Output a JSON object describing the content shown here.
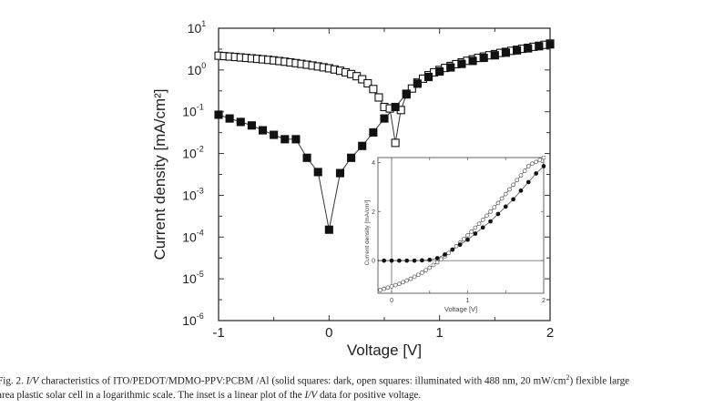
{
  "chart_data": [
    {
      "id": "main",
      "type": "scatter",
      "title": "",
      "xlabel": "Voltage [V]",
      "ylabel": "Current density [mA/cm²]",
      "yscale": "log",
      "xlim": [
        -1,
        2
      ],
      "ylim": [
        1e-06,
        10
      ],
      "xticks": [
        -1,
        0,
        1,
        2
      ],
      "xtick_labels": [
        "-1",
        "0",
        "1",
        "2"
      ],
      "ytick_exponents": [
        1,
        0,
        -1,
        -2,
        -3,
        -4,
        -5,
        -6
      ],
      "grid": false,
      "series": [
        {
          "name": "dark (solid squares)",
          "marker": "filled-square",
          "line": true,
          "x": [
            -1.0,
            -0.9,
            -0.8,
            -0.7,
            -0.6,
            -0.5,
            -0.4,
            -0.3,
            -0.2,
            -0.1,
            0.0,
            0.1,
            0.2,
            0.3,
            0.4,
            0.5,
            0.6,
            0.7,
            0.8,
            0.9,
            1.0,
            1.1,
            1.2,
            1.3,
            1.4,
            1.5,
            1.6,
            1.7,
            1.8,
            1.9,
            2.0
          ],
          "y": [
            0.085,
            0.069,
            0.057,
            0.047,
            0.036,
            0.028,
            0.022,
            0.022,
            0.0079,
            0.0036,
            0.00015,
            0.0034,
            0.0079,
            0.0152,
            0.032,
            0.069,
            0.13,
            0.27,
            0.47,
            0.68,
            0.92,
            1.15,
            1.4,
            1.65,
            1.95,
            2.25,
            2.6,
            2.95,
            3.3,
            3.7,
            4.1
          ]
        },
        {
          "name": "illuminated (open squares)",
          "marker": "open-square",
          "line": true,
          "x": [
            -1.0,
            -0.95,
            -0.9,
            -0.85,
            -0.8,
            -0.75,
            -0.7,
            -0.65,
            -0.6,
            -0.55,
            -0.5,
            -0.45,
            -0.4,
            -0.35,
            -0.3,
            -0.25,
            -0.2,
            -0.15,
            -0.1,
            -0.05,
            0.0,
            0.05,
            0.1,
            0.15,
            0.2,
            0.25,
            0.3,
            0.35,
            0.4,
            0.45,
            0.5,
            0.55,
            0.6,
            0.65,
            0.7,
            0.75,
            0.8,
            0.85,
            0.9,
            0.95,
            1.0,
            1.05,
            1.1,
            1.15,
            1.2,
            1.25,
            1.3,
            1.35,
            1.4,
            1.45,
            1.5,
            1.55,
            1.6,
            1.65,
            1.7,
            1.75,
            1.8,
            1.85,
            1.9,
            1.95,
            2.0
          ],
          "y": [
            2.2,
            2.15,
            2.1,
            2.05,
            2.0,
            1.95,
            1.9,
            1.85,
            1.8,
            1.75,
            1.7,
            1.64,
            1.58,
            1.52,
            1.46,
            1.4,
            1.34,
            1.28,
            1.22,
            1.16,
            1.1,
            1.03,
            0.96,
            0.88,
            0.8,
            0.71,
            0.6,
            0.48,
            0.35,
            0.22,
            0.13,
            0.12,
            0.018,
            0.11,
            0.26,
            0.36,
            0.5,
            0.62,
            0.75,
            0.88,
            1.0,
            1.12,
            1.25,
            1.38,
            1.52,
            1.66,
            1.8,
            1.95,
            2.1,
            2.25,
            2.4,
            2.56,
            2.72,
            2.88,
            3.05,
            3.22,
            3.4,
            3.6,
            3.8,
            4.0,
            4.3
          ]
        }
      ]
    },
    {
      "id": "inset",
      "type": "scatter",
      "title": "",
      "xlabel": "Voltage [V]",
      "ylabel": "Current density [mA/cm²]",
      "yscale": "linear",
      "xlim": [
        -0.18,
        2
      ],
      "ylim": [
        -1.33,
        4.2
      ],
      "xticks": [
        0,
        1,
        2
      ],
      "xtick_labels": [
        "0",
        "1",
        "2"
      ],
      "yticks": [
        0,
        2,
        4
      ],
      "ytick_labels": [
        "0",
        "2",
        "4"
      ],
      "grid": false,
      "series": [
        {
          "name": "dark (solid)",
          "marker": "filled-circle",
          "line": true,
          "x": [
            -0.2,
            -0.1,
            0.0,
            0.1,
            0.2,
            0.3,
            0.4,
            0.5,
            0.6,
            0.7,
            0.8,
            0.9,
            1.0,
            1.1,
            1.2,
            1.3,
            1.4,
            1.5,
            1.6,
            1.7,
            1.8,
            1.9,
            2.0
          ],
          "y": [
            0.0,
            0.0,
            0.0,
            0.0,
            0.0,
            0.0,
            0.01,
            0.03,
            0.1,
            0.25,
            0.45,
            0.65,
            0.85,
            1.1,
            1.35,
            1.6,
            1.9,
            2.2,
            2.5,
            2.85,
            3.2,
            3.55,
            3.85
          ]
        },
        {
          "name": "illuminated (open)",
          "marker": "open-circle",
          "line": true,
          "x": [
            -0.15,
            -0.1,
            -0.05,
            0.0,
            0.05,
            0.1,
            0.15,
            0.2,
            0.25,
            0.3,
            0.35,
            0.4,
            0.45,
            0.5,
            0.55,
            0.6,
            0.65,
            0.7,
            0.75,
            0.8,
            0.85,
            0.9,
            0.95,
            1.0,
            1.05,
            1.1,
            1.15,
            1.2,
            1.25,
            1.3,
            1.35,
            1.4,
            1.45,
            1.5,
            1.55,
            1.6,
            1.65,
            1.7,
            1.75,
            1.8,
            1.85,
            1.9,
            1.95,
            2.0
          ],
          "y": [
            -1.2,
            -1.15,
            -1.1,
            -1.05,
            -1.0,
            -0.95,
            -0.88,
            -0.81,
            -0.74,
            -0.66,
            -0.58,
            -0.49,
            -0.39,
            -0.29,
            -0.18,
            -0.07,
            0.05,
            0.18,
            0.31,
            0.45,
            0.59,
            0.73,
            0.88,
            1.03,
            1.18,
            1.34,
            1.5,
            1.66,
            1.83,
            2.0,
            2.17,
            2.35,
            2.53,
            2.71,
            2.9,
            3.09,
            3.28,
            3.47,
            3.66,
            3.85,
            3.95,
            4.02,
            4.1,
            4.2
          ]
        }
      ]
    }
  ],
  "caption": {
    "line1_prefix": "Fig. 2. ",
    "line1_iv": "I/V",
    "line1_text": " characteristics of ITO/PEDOT/MDMO-PPV:PCBM /Al (solid squares: dark, open squares: illuminated with 488 nm, 20 mW/cm",
    "line1_sup": "2",
    "line1_suffix": ") flexible large",
    "line2_text": "area plastic solar cell in a logarithmic scale. The inset is a linear plot of the ",
    "line2_iv": "I/V",
    "line2_suffix": " data for positive voltage."
  }
}
